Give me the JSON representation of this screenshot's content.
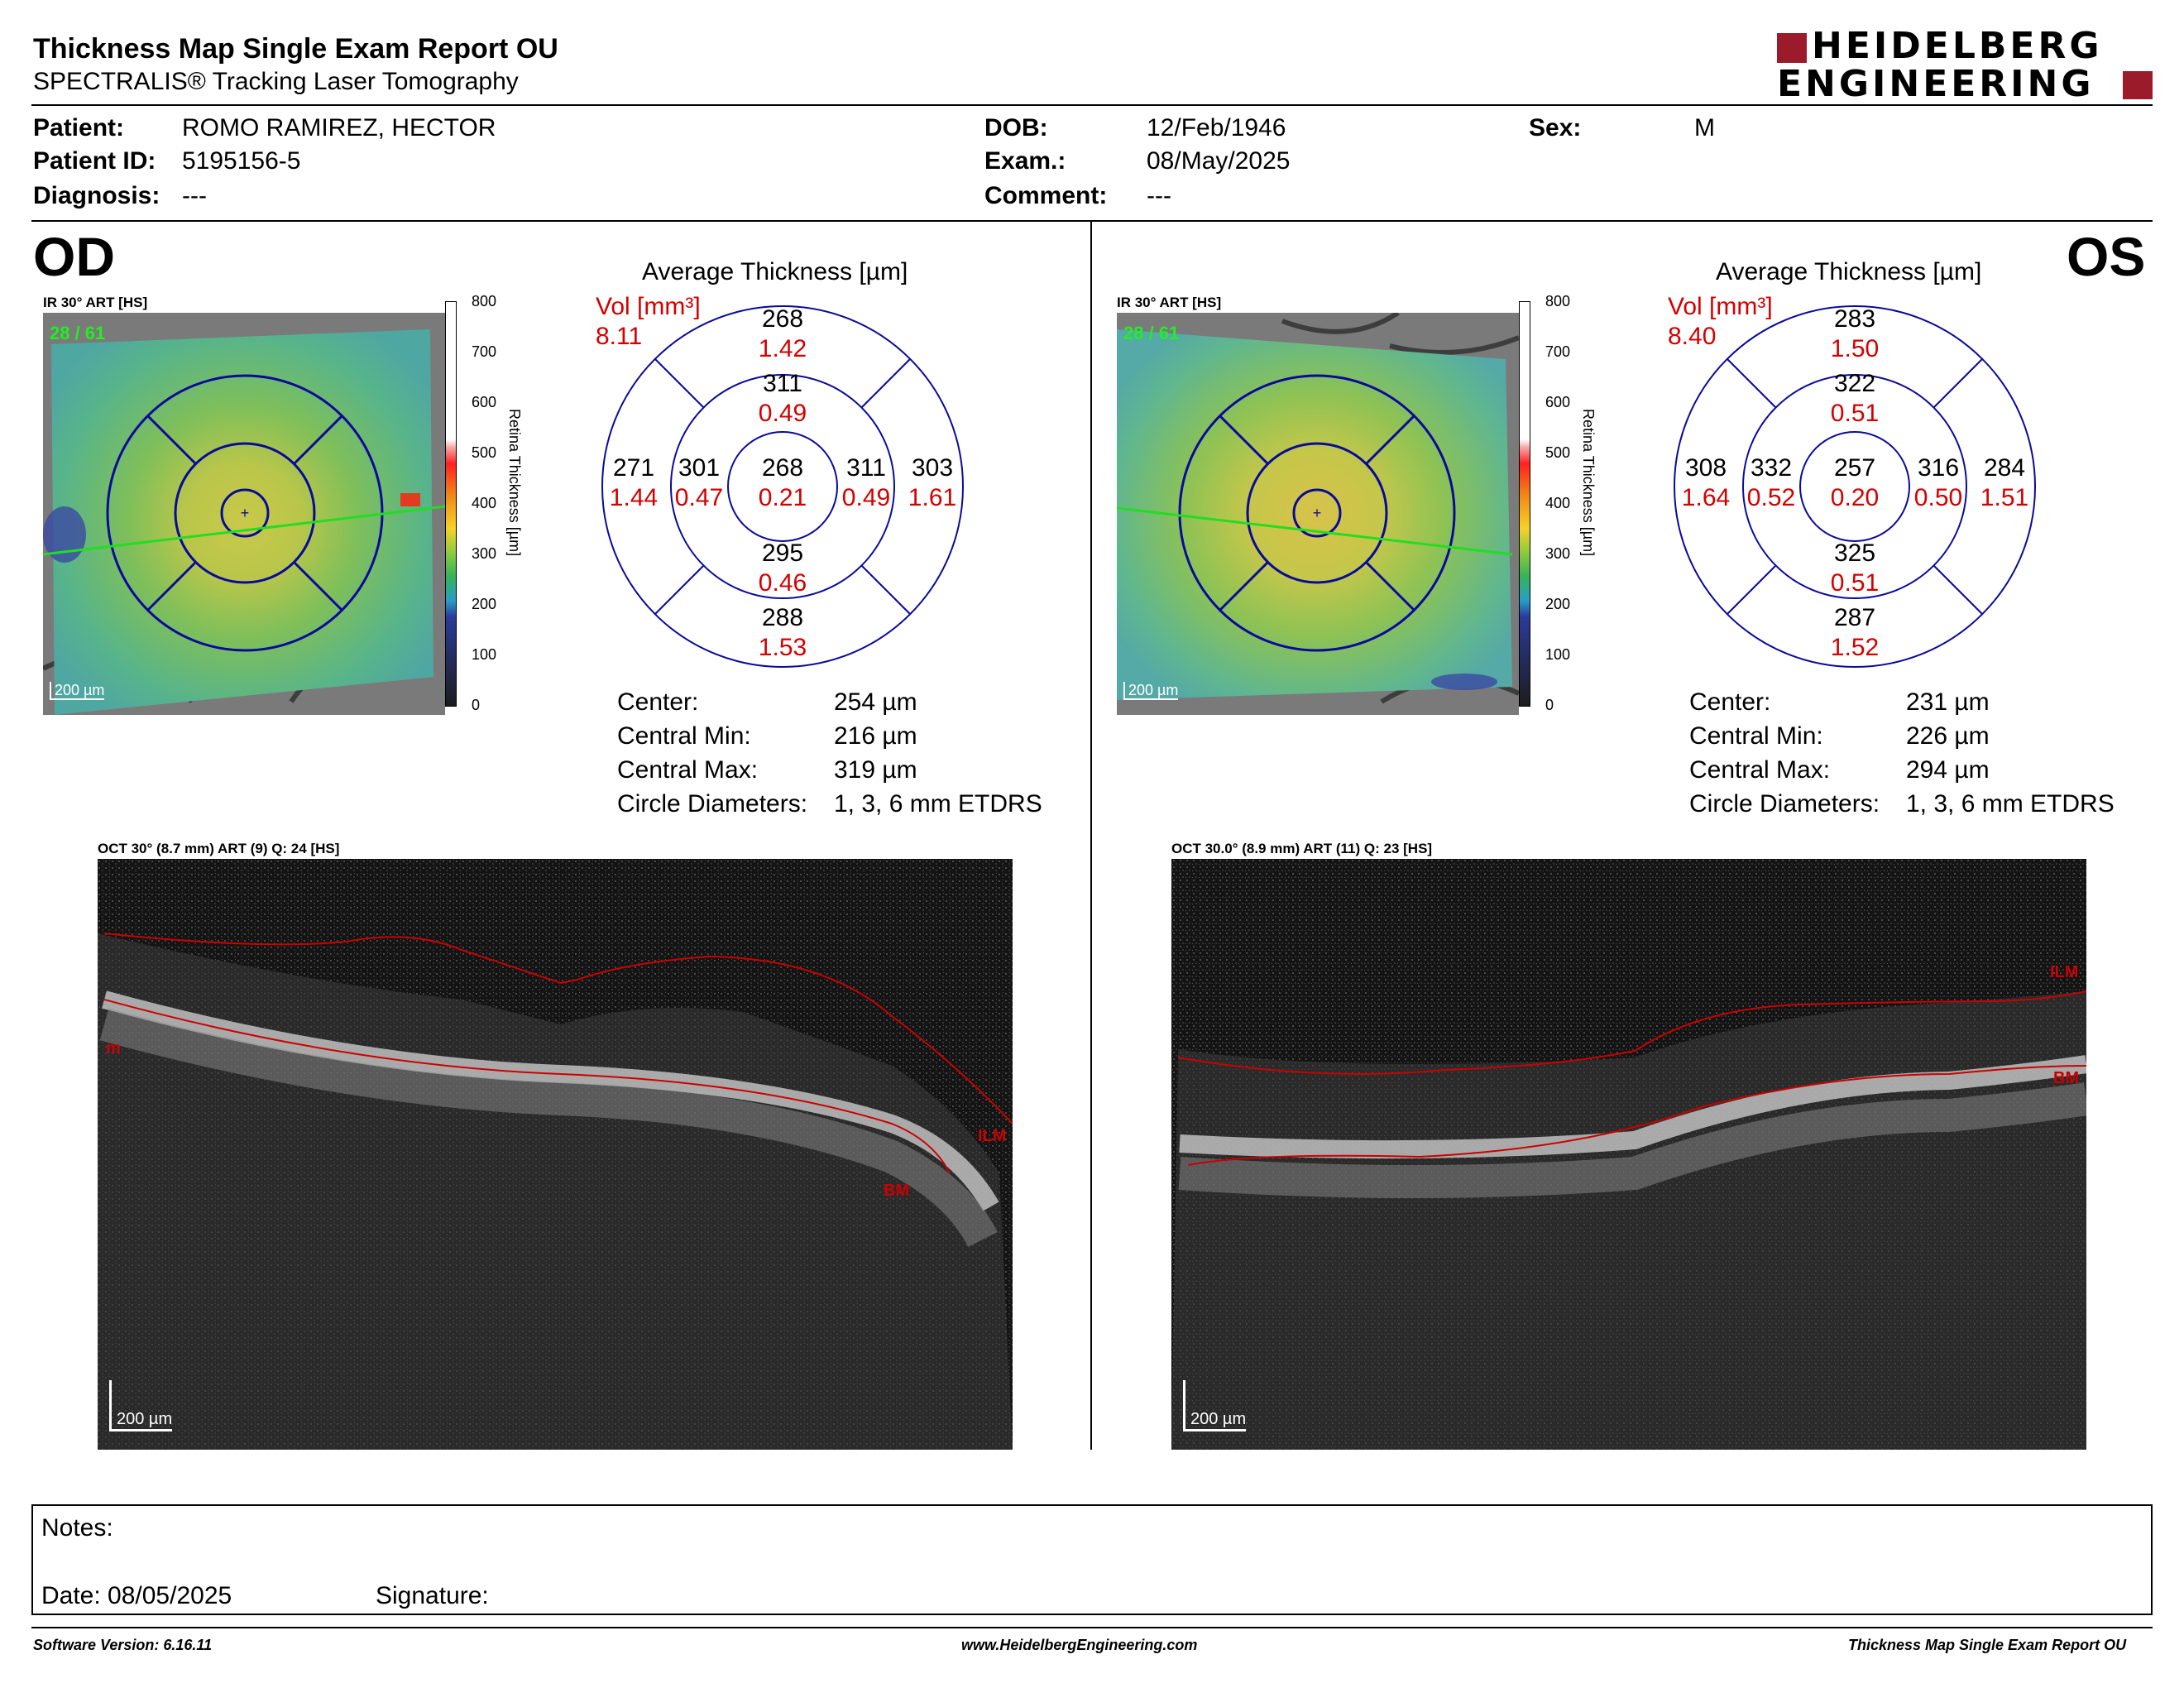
{
  "header": {
    "title": "Thickness Map Single Exam Report OU",
    "subtitle": "SPECTRALIS® Tracking Laser Tomography",
    "logo_line1": "HEIDELBERG",
    "logo_line2": "ENGINEERING"
  },
  "patient": {
    "patient_label": "Patient:",
    "patient_value": "ROMO RAMIREZ, HECTOR",
    "id_label": "Patient ID:",
    "id_value": "5195156-5",
    "diagnosis_label": "Diagnosis:",
    "diagnosis_value": "---",
    "dob_label": "DOB:",
    "dob_value": "12/Feb/1946",
    "exam_label": "Exam.:",
    "exam_value": "08/May/2025",
    "comment_label": "Comment:",
    "comment_value": "---",
    "sex_label": "Sex:",
    "sex_value": "M"
  },
  "od": {
    "eye": "OD",
    "ir_label": "IR 30° ART [HS]",
    "ir_count": "28 / 61",
    "scale_bar": "200 µm",
    "scale_ticks": [
      "800",
      "700",
      "600",
      "500",
      "400",
      "300",
      "200",
      "100",
      "0"
    ],
    "scale_title": "Retina  Thickness [µm]",
    "avg_title": "Average Thickness [µm]",
    "vol_label": "Vol [mm³]",
    "vol_value": "8.11",
    "sectors": {
      "sup_outer": [
        "268",
        "1.42"
      ],
      "sup_inner": [
        "311",
        "0.49"
      ],
      "left_outer": [
        "271",
        "1.44"
      ],
      "left_inner": [
        "301",
        "0.47"
      ],
      "center": [
        "268",
        "0.21"
      ],
      "right_inner": [
        "311",
        "0.49"
      ],
      "right_outer": [
        "303",
        "1.61"
      ],
      "inf_inner": [
        "295",
        "0.46"
      ],
      "inf_outer": [
        "288",
        "1.53"
      ]
    },
    "stats": {
      "center_label": "Center:",
      "center_value": "254 µm",
      "min_label": "Central Min:",
      "min_value": "216 µm",
      "max_label": "Central Max:",
      "max_value": "319 µm",
      "circ_label": "Circle Diameters:",
      "circ_value": "1, 3, 6 mm ETDRS"
    },
    "oct_label": "OCT 30° (8.7 mm) ART (9) Q: 24 [HS]",
    "oct_scale": "200 µm",
    "ilm": "ILM",
    "bm": "BM",
    "m": "m"
  },
  "os": {
    "eye": "OS",
    "ir_label": "IR 30° ART [HS]",
    "ir_count": "28 / 61",
    "scale_bar": "200 µm",
    "scale_ticks": [
      "800",
      "700",
      "600",
      "500",
      "400",
      "300",
      "200",
      "100",
      "0"
    ],
    "scale_title": "Retina  Thickness [µm]",
    "avg_title": "Average Thickness [µm]",
    "vol_label": "Vol [mm³]",
    "vol_value": "8.40",
    "sectors": {
      "sup_outer": [
        "283",
        "1.50"
      ],
      "sup_inner": [
        "322",
        "0.51"
      ],
      "left_outer": [
        "308",
        "1.64"
      ],
      "left_inner": [
        "332",
        "0.52"
      ],
      "center": [
        "257",
        "0.20"
      ],
      "right_inner": [
        "316",
        "0.50"
      ],
      "right_outer": [
        "284",
        "1.51"
      ],
      "inf_inner": [
        "325",
        "0.51"
      ],
      "inf_outer": [
        "287",
        "1.52"
      ]
    },
    "stats": {
      "center_label": "Center:",
      "center_value": "231 µm",
      "min_label": "Central Min:",
      "min_value": "226 µm",
      "max_label": "Central Max:",
      "max_value": "294 µm",
      "circ_label": "Circle Diameters:",
      "circ_value": "1, 3, 6 mm ETDRS"
    },
    "oct_label": "OCT 30.0° (8.9 mm) ART (11) Q: 23 [HS]",
    "oct_scale": "200 µm",
    "ilm": "ILM",
    "bm": "BM"
  },
  "notes": {
    "notes_label": "Notes:",
    "date_label": "Date: 08/05/2025",
    "signature_label": "Signature:"
  },
  "footer": {
    "version": "Software Version: 6.16.11",
    "website": "www.HeidelbergEngineering.com",
    "report": "Thickness Map Single Exam Report OU"
  },
  "colors": {
    "accent_red": "#d40000",
    "logo_red": "#9b1b2a",
    "grid_blue": "#0a0a9a"
  }
}
